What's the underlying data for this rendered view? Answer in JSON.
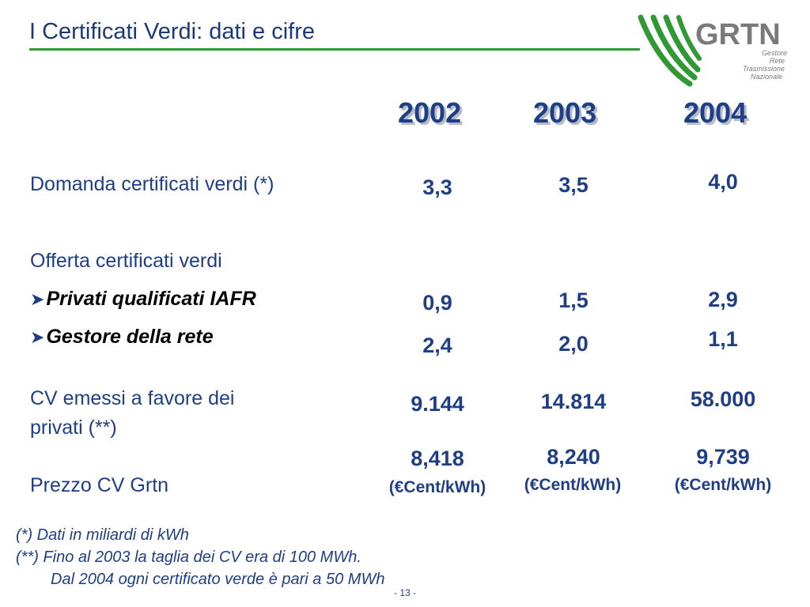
{
  "header": {
    "title": "I Certificati Verdi: dati e cifre",
    "logo": {
      "name": "GRTN",
      "line1": "Gestore",
      "line2": "Rete",
      "line3": "Trasmissione",
      "line4": "Nazionale"
    }
  },
  "years": [
    "2002",
    "2003",
    "2004"
  ],
  "rows": {
    "domanda": {
      "label": "Domanda certificati verdi (*)",
      "values": [
        "3,3",
        "3,5",
        "4,0"
      ]
    },
    "offerta": {
      "label": "Offerta certificati verdi"
    },
    "privati": {
      "label": "Privati qualificati IAFR",
      "values": [
        "0,9",
        "1,5",
        "2,9"
      ]
    },
    "gestore": {
      "label": "Gestore della rete",
      "values": [
        "2,4",
        "2,0",
        "1,1"
      ]
    },
    "cv_emessi": {
      "label_line1": "CV emessi a favore dei",
      "label_line2": "privati (**)",
      "values": [
        "9.144",
        "14.814",
        "58.000"
      ]
    },
    "prezzo": {
      "label": "Prezzo CV Grtn",
      "values": [
        "8,418",
        "8,240",
        "9,739"
      ],
      "unit": "(€Cent/kWh)"
    }
  },
  "notes": {
    "n1": "(*)  Dati in miliardi di kWh",
    "n2": "(**) Fino al 2003 la taglia dei CV era di 100 MWh.",
    "n3": "Dal 2004 ogni certificato verde è pari a 50 MWh"
  },
  "page_number": "- 13 -",
  "colors": {
    "title": "#1c3a7a",
    "text": "#1e3f86",
    "accent_green": "#2f9a34",
    "logo_gray": "#7a7a7a"
  }
}
